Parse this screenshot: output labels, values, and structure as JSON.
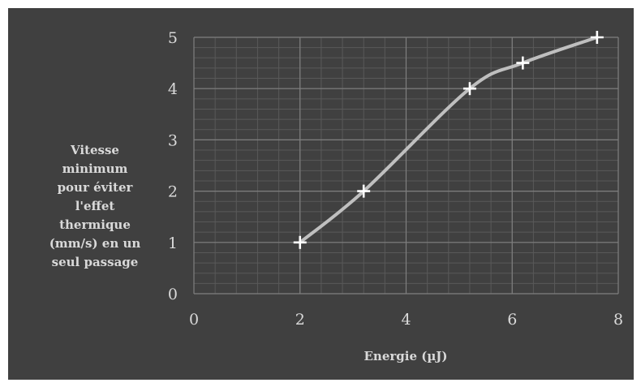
{
  "chart_data": {
    "type": "scatter",
    "title": "",
    "xlabel": "Energie (µJ)",
    "ylabel_lines": [
      "Vitesse",
      "minimum",
      "pour éviter",
      "l'effet",
      "thermique",
      "(mm/s) en un",
      "seul passage"
    ],
    "xlim": [
      0,
      8
    ],
    "ylim": [
      0,
      5
    ],
    "x_ticks": [
      "0",
      "2",
      "4",
      "6",
      "8"
    ],
    "y_ticks": [
      "0",
      "1",
      "2",
      "3",
      "4",
      "5"
    ],
    "x_minor_step": 0.4,
    "y_minor_step": 0.2,
    "grid": true,
    "smooth_line": true,
    "marker": "plus",
    "series": [
      {
        "x": [
          2.0,
          3.2,
          5.2,
          6.2,
          7.6
        ],
        "y": [
          1.0,
          2.0,
          4.0,
          4.5,
          5.0
        ]
      }
    ],
    "colors": {
      "background": "#404040",
      "major_grid": "#7f7f7f",
      "minor_grid": "#595959",
      "line": "#bfbfbf",
      "marker": "#ffffff",
      "text": "#d9d9d9"
    }
  }
}
